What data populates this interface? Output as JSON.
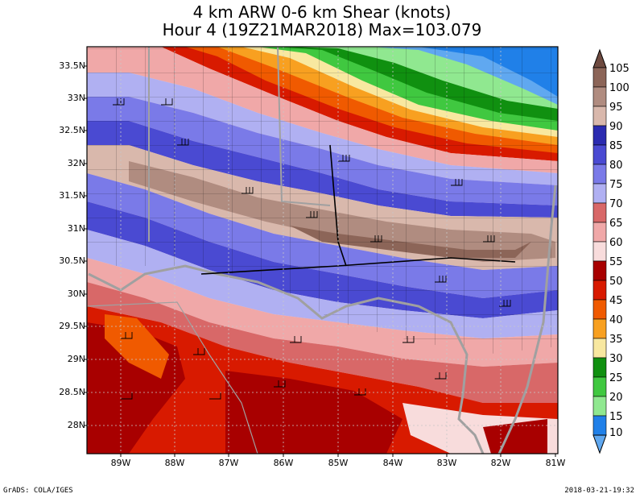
{
  "title": {
    "line1": "4 km ARW 0-6 km Shear (knots)",
    "line2": "Hour 4 (19Z21MAR2018) Max=103.079"
  },
  "axes": {
    "lat_labels": [
      "33.5N",
      "33N",
      "32.5N",
      "32N",
      "31.5N",
      "31N",
      "30.5N",
      "30N",
      "29.5N",
      "29N",
      "28.5N",
      "28N"
    ],
    "lon_labels": [
      "89W",
      "88W",
      "87W",
      "86W",
      "85W",
      "84W",
      "83W",
      "82W",
      "81W"
    ]
  },
  "colorbar": {
    "labels": [
      "105",
      "100",
      "95",
      "90",
      "85",
      "80",
      "75",
      "70",
      "65",
      "60",
      "55",
      "50",
      "45",
      "40",
      "35",
      "30",
      "25",
      "20",
      "15",
      "10"
    ],
    "colors": [
      "#6e4a40",
      "#8c6558",
      "#b08c80",
      "#d9b8ac",
      "#2b2bb0",
      "#4a4ad2",
      "#7a7ae8",
      "#b0b0f2",
      "#d86868",
      "#f0a8a8",
      "#f8dcdc",
      "#a80000",
      "#d81a00",
      "#f05a00",
      "#f8a020",
      "#f8e8a0",
      "#109010",
      "#40c840",
      "#90e890",
      "#2080e8",
      "#60a8f0"
    ],
    "colors_note": ""
  },
  "footer": {
    "left": "GrADS: COLA/IGES",
    "right": "2018-03-21-19:32"
  }
}
